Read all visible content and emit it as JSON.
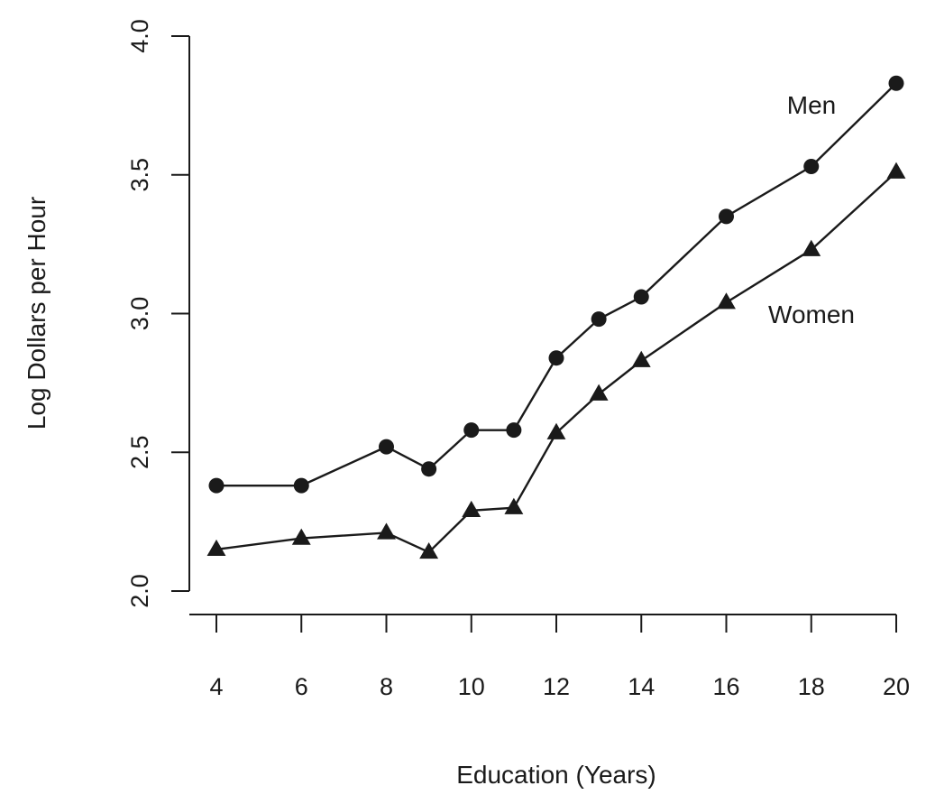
{
  "chart_data": {
    "type": "line",
    "title": "",
    "xlabel": "Education (Years)",
    "ylabel": "Log Dollars per Hour",
    "xlim": [
      4,
      20
    ],
    "ylim": [
      2.0,
      4.0
    ],
    "x_ticks": [
      4,
      6,
      8,
      10,
      12,
      14,
      16,
      18,
      20
    ],
    "y_ticks": [
      "2.0",
      "2.5",
      "3.0",
      "3.5",
      "4.0"
    ],
    "grid": false,
    "x": [
      4,
      6,
      8,
      9,
      10,
      11,
      12,
      13,
      14,
      16,
      18,
      20
    ],
    "series": [
      {
        "name": "Men",
        "marker": "circle",
        "color": "#1a1a1a",
        "values": [
          2.38,
          2.38,
          2.52,
          2.44,
          2.58,
          2.58,
          2.84,
          2.98,
          3.06,
          3.35,
          3.53,
          3.83
        ]
      },
      {
        "name": "Women",
        "marker": "triangle",
        "color": "#1a1a1a",
        "values": [
          2.15,
          2.19,
          2.21,
          2.14,
          2.29,
          2.3,
          2.57,
          2.71,
          2.83,
          3.04,
          3.23,
          3.51
        ]
      }
    ]
  }
}
